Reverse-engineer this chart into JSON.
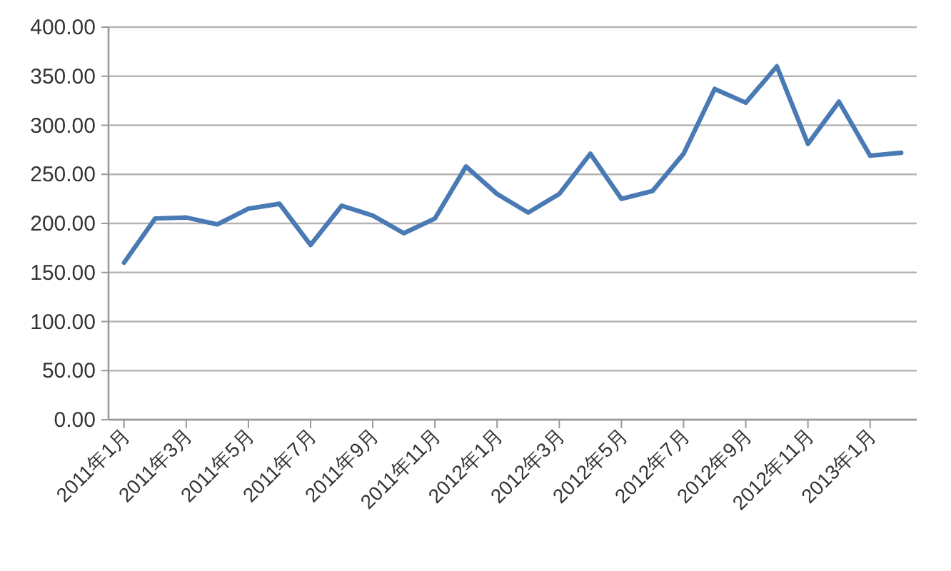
{
  "chart_data": {
    "type": "line",
    "categories": [
      "2011年1月",
      null,
      "2011年3月",
      null,
      "2011年5月",
      null,
      "2011年7月",
      null,
      "2011年9月",
      null,
      "2011年11月",
      null,
      "2012年1月",
      null,
      "2012年3月",
      null,
      "2012年5月",
      null,
      "2012年7月",
      null,
      "2012年9月",
      null,
      "2012年11月",
      null,
      "2013年1月",
      null
    ],
    "series": [
      {
        "color": "#4a7ab4",
        "values": [
          160,
          205,
          206,
          199,
          215,
          220,
          178,
          218,
          208,
          190,
          205,
          258,
          230,
          211,
          230,
          271,
          225,
          233,
          271,
          337,
          323,
          360,
          281,
          324,
          269,
          272
        ]
      }
    ],
    "ylim": [
      0,
      400
    ],
    "yticks": [
      {
        "value": 0,
        "label": "0.00"
      },
      {
        "value": 50,
        "label": "50.00"
      },
      {
        "value": 100,
        "label": "100.00"
      },
      {
        "value": 150,
        "label": "150.00"
      },
      {
        "value": 200,
        "label": "200.00"
      },
      {
        "value": 250,
        "label": "250.00"
      },
      {
        "value": 300,
        "label": "300.00"
      },
      {
        "value": 350,
        "label": "350.00"
      },
      {
        "value": 400,
        "label": "400.00"
      }
    ],
    "grid": "y",
    "marker": "none",
    "line_style": "solid"
  }
}
